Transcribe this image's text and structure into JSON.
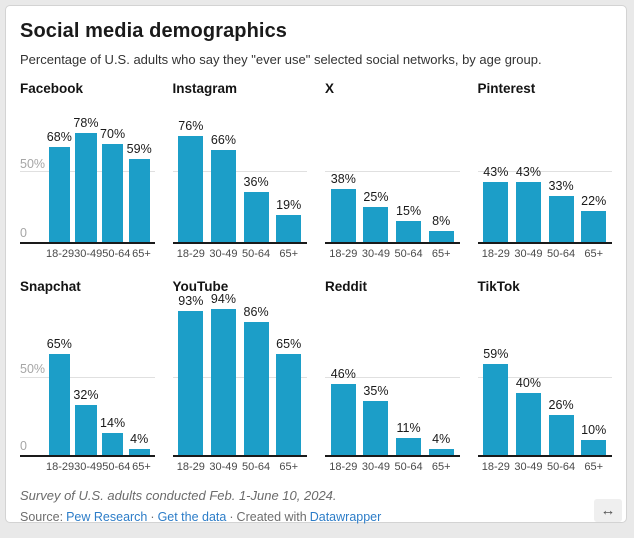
{
  "header": {
    "title": "Social media demographics",
    "subtitle": "Percentage of U.S. adults who say they \"ever use\" selected social networks, by age group."
  },
  "chart_data": {
    "type": "bar",
    "title": "Social media demographics",
    "xlabel": "",
    "ylabel": "",
    "ylim": [
      0,
      100
    ],
    "gridline_at": 50,
    "grid": "horizontal-50-only",
    "y_tick_labels": [
      "50%",
      "0"
    ],
    "categories": [
      "18-29",
      "30-49",
      "50-64",
      "65+"
    ],
    "series": [
      {
        "name": "Facebook",
        "values": [
          68,
          78,
          70,
          59
        ]
      },
      {
        "name": "Instagram",
        "values": [
          76,
          66,
          36,
          19
        ]
      },
      {
        "name": "X",
        "values": [
          38,
          25,
          15,
          8
        ]
      },
      {
        "name": "Pinterest",
        "values": [
          43,
          43,
          33,
          22
        ]
      },
      {
        "name": "Snapchat",
        "values": [
          65,
          32,
          14,
          4
        ]
      },
      {
        "name": "YouTube",
        "values": [
          93,
          94,
          86,
          65
        ]
      },
      {
        "name": "Reddit",
        "values": [
          46,
          35,
          11,
          4
        ]
      },
      {
        "name": "TikTok",
        "values": [
          59,
          40,
          26,
          10
        ]
      }
    ],
    "value_label_format": "{value}%"
  },
  "footer": {
    "note": "Survey of U.S. adults conducted Feb. 1-June 10, 2024.",
    "source_label": "Source:",
    "links": [
      {
        "label": "Pew Research"
      },
      {
        "label": "Get the data"
      }
    ],
    "sep": "·",
    "created_with": "Created with",
    "tool_link": "Datawrapper"
  },
  "icons": {
    "resize": "↔"
  },
  "colors": {
    "bar": "#1c9ec8",
    "link": "#2d7dc8",
    "gridline": "#e0e0e0",
    "baseline": "#1a1a1a",
    "page_background": "#e9e9e9",
    "card_background": "#ffffff"
  }
}
